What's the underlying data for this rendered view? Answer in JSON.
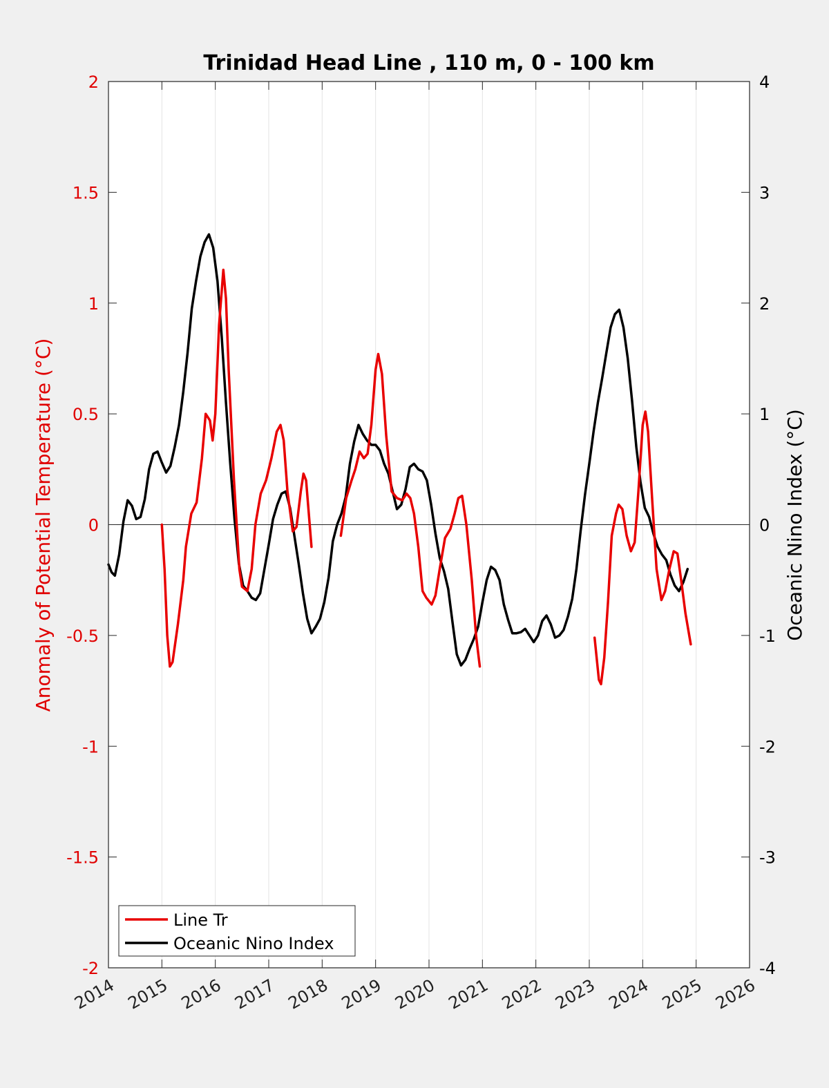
{
  "chart_data": {
    "type": "line",
    "title": "Trinidad Head Line , 110 m, 0 - 100 km",
    "ylabel": "Anomaly of Potential Temperature (°C)",
    "ylabel_right": "Oceanic Nino Index (°C)",
    "xlim": [
      2014,
      2026
    ],
    "ylim": [
      -2,
      2
    ],
    "ylim_right": [
      -4,
      4
    ],
    "x_ticks": [
      "2014",
      "2015",
      "2016",
      "2017",
      "2018",
      "2019",
      "2020",
      "2021",
      "2022",
      "2023",
      "2024",
      "2025",
      "2026"
    ],
    "y_ticks_left": [
      "-2",
      "-1.5",
      "-1",
      "-0.5",
      "0",
      "0.5",
      "1",
      "1.5",
      "2"
    ],
    "y_ticks_right": [
      "-4",
      "-3",
      "-2",
      "-1",
      "0",
      "1",
      "2",
      "3",
      "4"
    ],
    "grid": "vertical",
    "zero_line": true,
    "legend_position": "bottom-left",
    "colors": {
      "line_tr": "#e80000",
      "oni": "#000000",
      "left_axis": "#e00000"
    },
    "series": [
      {
        "name": "Line Tr",
        "axis": "left",
        "segments": [
          [
            [
              2015.0,
              0.0
            ],
            [
              2015.05,
              -0.2
            ],
            [
              2015.1,
              -0.5
            ],
            [
              2015.15,
              -0.64
            ],
            [
              2015.2,
              -0.62
            ],
            [
              2015.3,
              -0.45
            ],
            [
              2015.4,
              -0.25
            ],
            [
              2015.45,
              -0.1
            ],
            [
              2015.55,
              0.05
            ],
            [
              2015.65,
              0.1
            ],
            [
              2015.75,
              0.3
            ],
            [
              2015.82,
              0.5
            ],
            [
              2015.9,
              0.47
            ],
            [
              2015.95,
              0.38
            ],
            [
              2016.0,
              0.5
            ],
            [
              2016.07,
              0.9
            ],
            [
              2016.15,
              1.15
            ],
            [
              2016.2,
              1.02
            ],
            [
              2016.25,
              0.7
            ],
            [
              2016.35,
              0.2
            ],
            [
              2016.45,
              -0.2
            ],
            [
              2016.5,
              -0.28
            ],
            [
              2016.6,
              -0.3
            ],
            [
              2016.68,
              -0.2
            ],
            [
              2016.75,
              0.0
            ],
            [
              2016.85,
              0.14
            ],
            [
              2016.95,
              0.2
            ],
            [
              2017.05,
              0.3
            ],
            [
              2017.15,
              0.42
            ],
            [
              2017.22,
              0.45
            ],
            [
              2017.28,
              0.38
            ],
            [
              2017.35,
              0.15
            ],
            [
              2017.45,
              -0.03
            ],
            [
              2017.52,
              -0.01
            ],
            [
              2017.6,
              0.15
            ],
            [
              2017.65,
              0.23
            ],
            [
              2017.7,
              0.2
            ],
            [
              2017.75,
              0.05
            ],
            [
              2017.8,
              -0.1
            ]
          ],
          [
            [
              2018.35,
              -0.05
            ],
            [
              2018.45,
              0.12
            ],
            [
              2018.55,
              0.2
            ],
            [
              2018.62,
              0.25
            ],
            [
              2018.7,
              0.33
            ],
            [
              2018.78,
              0.3
            ],
            [
              2018.85,
              0.32
            ],
            [
              2018.92,
              0.45
            ],
            [
              2019.0,
              0.7
            ],
            [
              2019.05,
              0.77
            ],
            [
              2019.12,
              0.68
            ],
            [
              2019.2,
              0.4
            ],
            [
              2019.3,
              0.15
            ],
            [
              2019.4,
              0.12
            ],
            [
              2019.5,
              0.11
            ],
            [
              2019.58,
              0.14
            ],
            [
              2019.65,
              0.12
            ],
            [
              2019.72,
              0.05
            ],
            [
              2019.8,
              -0.1
            ],
            [
              2019.88,
              -0.3
            ],
            [
              2019.95,
              -0.33
            ],
            [
              2020.05,
              -0.36
            ],
            [
              2020.12,
              -0.32
            ],
            [
              2020.2,
              -0.2
            ],
            [
              2020.3,
              -0.06
            ],
            [
              2020.4,
              -0.02
            ],
            [
              2020.48,
              0.05
            ],
            [
              2020.55,
              0.12
            ],
            [
              2020.62,
              0.13
            ],
            [
              2020.7,
              0.0
            ],
            [
              2020.8,
              -0.25
            ],
            [
              2020.88,
              -0.5
            ],
            [
              2020.95,
              -0.64
            ]
          ],
          [
            [
              2023.1,
              -0.51
            ],
            [
              2023.18,
              -0.7
            ],
            [
              2023.22,
              -0.72
            ],
            [
              2023.28,
              -0.6
            ],
            [
              2023.35,
              -0.35
            ],
            [
              2023.42,
              -0.05
            ],
            [
              2023.5,
              0.05
            ],
            [
              2023.55,
              0.09
            ],
            [
              2023.62,
              0.07
            ],
            [
              2023.7,
              -0.05
            ],
            [
              2023.78,
              -0.12
            ],
            [
              2023.85,
              -0.08
            ],
            [
              2023.92,
              0.15
            ],
            [
              2024.0,
              0.45
            ],
            [
              2024.05,
              0.51
            ],
            [
              2024.1,
              0.42
            ],
            [
              2024.18,
              0.1
            ],
            [
              2024.26,
              -0.2
            ],
            [
              2024.35,
              -0.34
            ],
            [
              2024.42,
              -0.3
            ],
            [
              2024.5,
              -0.2
            ],
            [
              2024.58,
              -0.12
            ],
            [
              2024.65,
              -0.13
            ],
            [
              2024.72,
              -0.25
            ],
            [
              2024.8,
              -0.4
            ],
            [
              2024.9,
              -0.54
            ]
          ]
        ]
      },
      {
        "name": "Oceanic Nino Index",
        "axis": "right",
        "segments": [
          [
            [
              2014.0,
              -0.36
            ],
            [
              2014.06,
              -0.43
            ],
            [
              2014.12,
              -0.46
            ],
            [
              2014.2,
              -0.27
            ],
            [
              2014.28,
              0.03
            ],
            [
              2014.36,
              0.22
            ],
            [
              2014.44,
              0.17
            ],
            [
              2014.52,
              0.05
            ],
            [
              2014.6,
              0.07
            ],
            [
              2014.68,
              0.23
            ],
            [
              2014.76,
              0.5
            ],
            [
              2014.84,
              0.64
            ],
            [
              2014.92,
              0.66
            ],
            [
              2015.0,
              0.56
            ],
            [
              2015.08,
              0.47
            ],
            [
              2015.16,
              0.53
            ],
            [
              2015.24,
              0.7
            ],
            [
              2015.32,
              0.9
            ],
            [
              2015.4,
              1.2
            ],
            [
              2015.48,
              1.55
            ],
            [
              2015.56,
              1.95
            ],
            [
              2015.64,
              2.2
            ],
            [
              2015.72,
              2.42
            ],
            [
              2015.8,
              2.55
            ],
            [
              2015.88,
              2.62
            ],
            [
              2015.96,
              2.5
            ],
            [
              2016.04,
              2.2
            ],
            [
              2016.12,
              1.7
            ],
            [
              2016.2,
              1.1
            ],
            [
              2016.28,
              0.55
            ],
            [
              2016.36,
              0.05
            ],
            [
              2016.44,
              -0.35
            ],
            [
              2016.52,
              -0.55
            ],
            [
              2016.6,
              -0.6
            ],
            [
              2016.68,
              -0.66
            ],
            [
              2016.76,
              -0.68
            ],
            [
              2016.84,
              -0.62
            ],
            [
              2016.92,
              -0.4
            ],
            [
              2017.0,
              -0.18
            ],
            [
              2017.08,
              0.05
            ],
            [
              2017.16,
              0.18
            ],
            [
              2017.24,
              0.28
            ],
            [
              2017.32,
              0.3
            ],
            [
              2017.4,
              0.15
            ],
            [
              2017.48,
              -0.1
            ],
            [
              2017.56,
              -0.35
            ],
            [
              2017.64,
              -0.62
            ],
            [
              2017.72,
              -0.85
            ],
            [
              2017.8,
              -0.98
            ],
            [
              2017.88,
              -0.92
            ],
            [
              2017.96,
              -0.85
            ],
            [
              2018.04,
              -0.7
            ],
            [
              2018.12,
              -0.48
            ],
            [
              2018.2,
              -0.15
            ],
            [
              2018.28,
              0.0
            ],
            [
              2018.36,
              0.1
            ],
            [
              2018.44,
              0.25
            ],
            [
              2018.52,
              0.55
            ],
            [
              2018.6,
              0.75
            ],
            [
              2018.68,
              0.9
            ],
            [
              2018.76,
              0.82
            ],
            [
              2018.84,
              0.76
            ],
            [
              2018.92,
              0.72
            ],
            [
              2019.0,
              0.72
            ],
            [
              2019.08,
              0.67
            ],
            [
              2019.16,
              0.55
            ],
            [
              2019.24,
              0.46
            ],
            [
              2019.32,
              0.3
            ],
            [
              2019.4,
              0.14
            ],
            [
              2019.48,
              0.18
            ],
            [
              2019.56,
              0.32
            ],
            [
              2019.64,
              0.52
            ],
            [
              2019.72,
              0.55
            ],
            [
              2019.8,
              0.5
            ],
            [
              2019.88,
              0.48
            ],
            [
              2019.96,
              0.4
            ],
            [
              2020.04,
              0.18
            ],
            [
              2020.12,
              -0.08
            ],
            [
              2020.2,
              -0.3
            ],
            [
              2020.28,
              -0.42
            ],
            [
              2020.36,
              -0.58
            ],
            [
              2020.44,
              -0.88
            ],
            [
              2020.52,
              -1.17
            ],
            [
              2020.6,
              -1.27
            ],
            [
              2020.68,
              -1.22
            ],
            [
              2020.76,
              -1.12
            ],
            [
              2020.84,
              -1.03
            ],
            [
              2020.92,
              -0.92
            ],
            [
              2021.0,
              -0.7
            ],
            [
              2021.08,
              -0.5
            ],
            [
              2021.16,
              -0.38
            ],
            [
              2021.24,
              -0.41
            ],
            [
              2021.32,
              -0.5
            ],
            [
              2021.4,
              -0.72
            ],
            [
              2021.48,
              -0.86
            ],
            [
              2021.56,
              -0.98
            ],
            [
              2021.64,
              -0.98
            ],
            [
              2021.72,
              -0.97
            ],
            [
              2021.8,
              -0.94
            ],
            [
              2021.88,
              -1.0
            ],
            [
              2021.96,
              -1.06
            ],
            [
              2022.04,
              -1.0
            ],
            [
              2022.12,
              -0.87
            ],
            [
              2022.2,
              -0.82
            ],
            [
              2022.28,
              -0.9
            ],
            [
              2022.36,
              -1.02
            ],
            [
              2022.44,
              -1.0
            ],
            [
              2022.52,
              -0.95
            ],
            [
              2022.6,
              -0.83
            ],
            [
              2022.68,
              -0.67
            ],
            [
              2022.76,
              -0.4
            ],
            [
              2022.84,
              -0.05
            ],
            [
              2022.92,
              0.27
            ],
            [
              2023.0,
              0.55
            ],
            [
              2023.08,
              0.84
            ],
            [
              2023.16,
              1.1
            ],
            [
              2023.24,
              1.32
            ],
            [
              2023.32,
              1.55
            ],
            [
              2023.4,
              1.78
            ],
            [
              2023.48,
              1.9
            ],
            [
              2023.56,
              1.94
            ],
            [
              2023.64,
              1.78
            ],
            [
              2023.72,
              1.5
            ],
            [
              2023.8,
              1.12
            ],
            [
              2023.88,
              0.7
            ],
            [
              2023.96,
              0.38
            ],
            [
              2024.04,
              0.15
            ],
            [
              2024.12,
              0.07
            ],
            [
              2024.2,
              -0.08
            ],
            [
              2024.28,
              -0.2
            ],
            [
              2024.36,
              -0.27
            ],
            [
              2024.44,
              -0.32
            ],
            [
              2024.52,
              -0.45
            ],
            [
              2024.6,
              -0.55
            ],
            [
              2024.68,
              -0.6
            ],
            [
              2024.76,
              -0.52
            ],
            [
              2024.84,
              -0.4
            ]
          ]
        ]
      }
    ]
  }
}
